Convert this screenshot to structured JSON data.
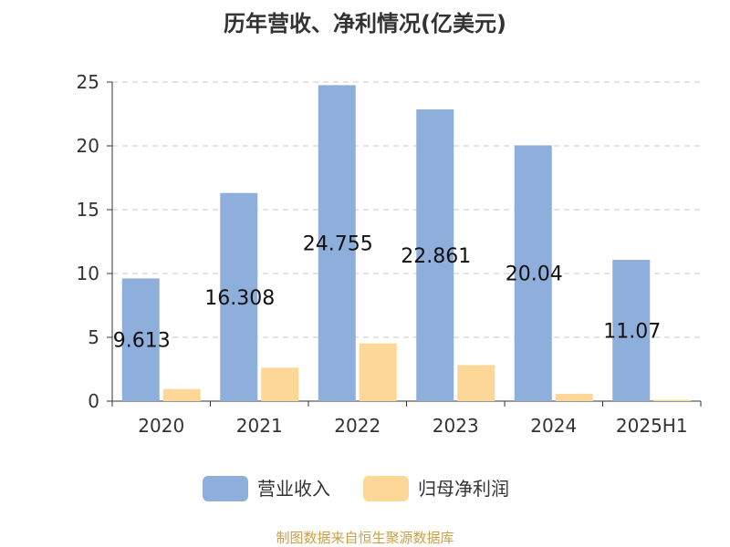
{
  "chart_data": {
    "type": "bar",
    "title": "历年营收、净利情况(亿美元)",
    "categories": [
      "2020",
      "2021",
      "2022",
      "2023",
      "2024",
      "2025H1"
    ],
    "y_ticks": [
      "0",
      "5",
      "10",
      "15",
      "20",
      "25"
    ],
    "ylim": [
      0,
      25
    ],
    "grid": true,
    "legend_position": "bottom",
    "series": [
      {
        "name": "营业收入",
        "color": "#8eaedb",
        "values": [
          9.613,
          16.308,
          24.755,
          22.861,
          20.04,
          11.07
        ],
        "labels": [
          "9.613",
          "16.308",
          "24.755",
          "22.861",
          "20.04",
          "11.07"
        ]
      },
      {
        "name": "归母净利润",
        "color": "#fdd797",
        "values": [
          0.95,
          2.62,
          4.52,
          2.82,
          0.58,
          0.1
        ]
      }
    ]
  },
  "footer": "制图数据来自恒生聚源数据库"
}
